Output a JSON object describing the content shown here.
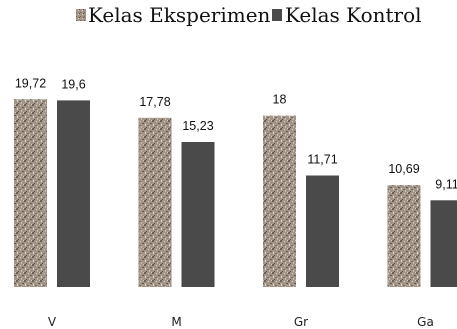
{
  "chart_data": {
    "type": "bar",
    "categories": [
      "V",
      "M",
      "Gr",
      "Ga"
    ],
    "series": [
      {
        "name": "Kelas Eksperimen",
        "values": [
          19.72,
          17.78,
          18,
          10.69
        ],
        "labels": [
          "19,72",
          "17,78",
          "18",
          "10,69"
        ],
        "color": "#9c8f82",
        "pattern": "granite-texture"
      },
      {
        "name": "Kelas Kontrol",
        "values": [
          19.6,
          15.23,
          11.71,
          9.11
        ],
        "labels": [
          "19,6",
          "15,23",
          "11,71",
          "9,11"
        ],
        "color": "#4a4a4a",
        "pattern": "solid"
      }
    ],
    "title": "",
    "xlabel": "",
    "ylabel": "",
    "ylim": [
      0,
      27
    ],
    "grid": false,
    "legend": "top-center"
  }
}
